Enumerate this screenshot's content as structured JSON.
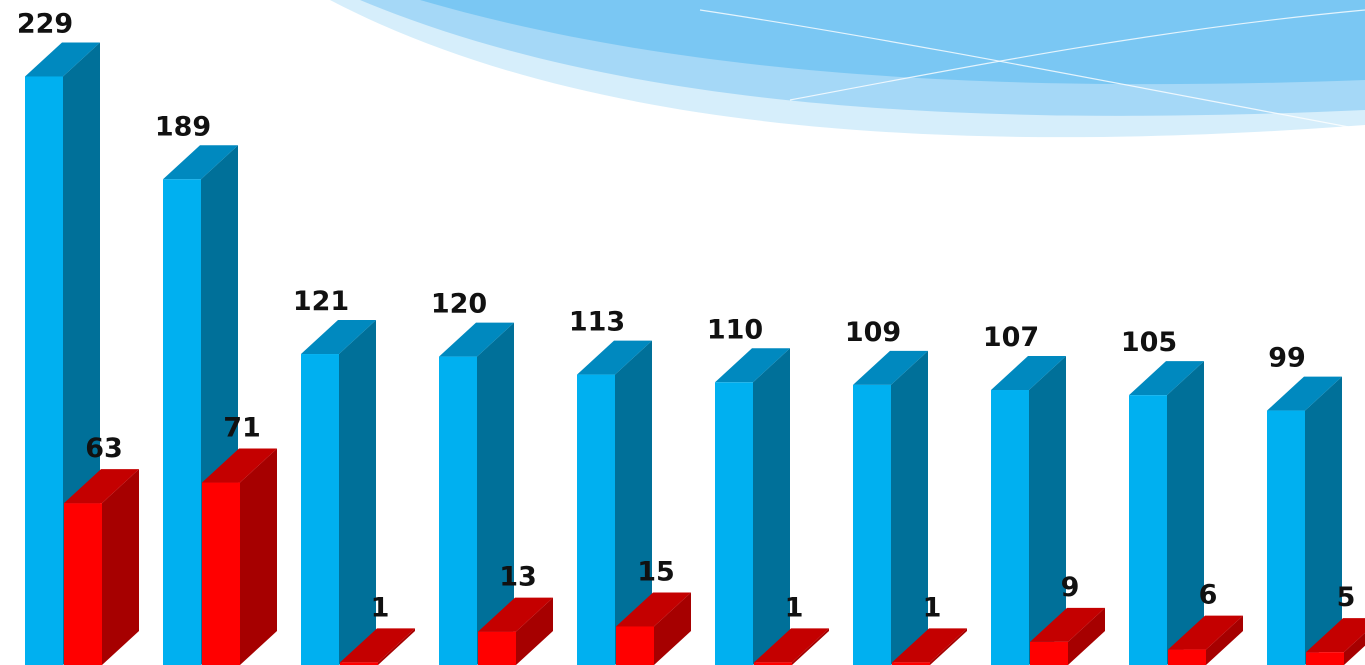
{
  "chart_data": {
    "type": "bar",
    "style": "3d-grouped-columns",
    "categories": [
      "",
      "",
      "",
      "",
      "",
      "",
      "",
      "",
      "",
      ""
    ],
    "series": [
      {
        "values": [
          229,
          189,
          121,
          120,
          113,
          110,
          109,
          107,
          105,
          99
        ]
      },
      {
        "values": [
          63,
          71,
          1,
          13,
          15,
          1,
          1,
          9,
          6,
          5
        ]
      }
    ],
    "value_labels": {
      "series_0": [
        "229",
        "189",
        "121",
        "120",
        "113",
        "110",
        "109",
        "107",
        "105",
        "99"
      ],
      "series_1": [
        "63",
        "71",
        "1",
        "13",
        "15",
        "1",
        "1",
        "9",
        "6",
        "5"
      ]
    },
    "title": "",
    "xlabel": "",
    "ylabel": "",
    "ylim": [
      0,
      229
    ],
    "grid": false,
    "legend": "none"
  },
  "colors": {
    "series_0": {
      "front": "#00B0F0",
      "side": "#007099",
      "top": "#0089BF"
    },
    "series_1": {
      "front": "#FF0000",
      "side": "#A60000",
      "top": "#C40000"
    },
    "wave_light": "#D6EEFB",
    "wave_mid": "#9CD4F6",
    "wave_dark": "#6CC1F2"
  }
}
